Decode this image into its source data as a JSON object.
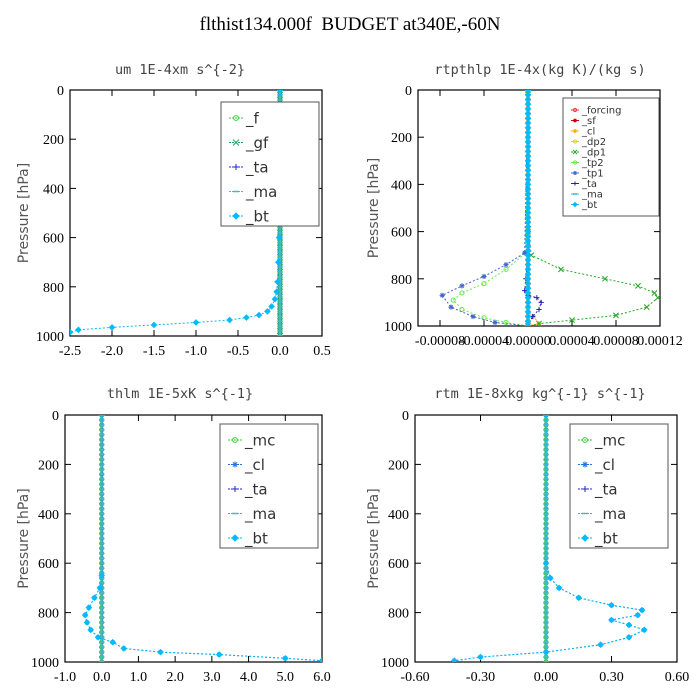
{
  "page": {
    "title": "flthist134.000f  BUDGET at340E,-60N"
  },
  "chart_data": [
    {
      "type": "line",
      "title": "um  1E-4xm s^{-2}",
      "ylabel": "Pressure [hPa]",
      "xlim": [
        -2.5,
        0.5
      ],
      "ylim": [
        1000,
        0
      ],
      "xticks": [
        "-2.5",
        "-2.0",
        "-1.5",
        "-1.0",
        "-0.5",
        "0.0",
        "0.5"
      ],
      "yticks": [
        "0",
        "200",
        "400",
        "600",
        "800",
        "1000"
      ],
      "legend": "top-right",
      "series": [
        {
          "name": "_f",
          "color": "#33cc33",
          "marker": "o",
          "x": [
            0,
            0
          ],
          "y": [
            0,
            1000
          ]
        },
        {
          "name": "_gf",
          "color": "#22aa66",
          "marker": "x",
          "x": [
            0,
            0
          ],
          "y": [
            0,
            1000
          ]
        },
        {
          "name": "_ta",
          "color": "#2222cc",
          "marker": "+",
          "x": [
            0,
            0
          ],
          "y": [
            0,
            1000
          ]
        },
        {
          "name": "_ma",
          "color": "#44bbbb",
          "marker": "-",
          "x": [
            0,
            0
          ],
          "y": [
            0,
            1000
          ]
        },
        {
          "name": "_bt",
          "color": "#00bbff",
          "marker": "d",
          "x": [
            0,
            0,
            -0.01,
            -0.02,
            -0.03,
            -0.04,
            -0.06,
            -0.1,
            -0.15,
            -0.25,
            -0.4,
            -0.6,
            -1.0,
            -1.5,
            -2.0,
            -2.4,
            -2.5
          ],
          "y": [
            0,
            500,
            600,
            700,
            780,
            820,
            850,
            880,
            900,
            915,
            925,
            935,
            945,
            955,
            965,
            975,
            985
          ]
        }
      ]
    },
    {
      "type": "line",
      "title": "rtpthlp  1E-4x(kg K)/(kg s)",
      "ylabel": "Pressure [hPa]",
      "xlim": [
        -0.0001,
        0.00012
      ],
      "ylim": [
        1000,
        0
      ],
      "xticks": [
        "-0.00008",
        "-0.00004",
        "0.00000",
        "0.00004",
        "0.00008",
        "0.00012"
      ],
      "yticks": [
        "0",
        "200",
        "400",
        "600",
        "800",
        "1000"
      ],
      "legend": "top-right",
      "series": [
        {
          "name": "_forcing",
          "color": "#ff3333",
          "marker": "o",
          "x": [
            0,
            0
          ],
          "y": [
            0,
            1000
          ]
        },
        {
          "name": "_sf",
          "color": "#cc0000",
          "marker": "*",
          "x": [
            0,
            0
          ],
          "y": [
            0,
            1000
          ]
        },
        {
          "name": "_cl",
          "color": "#ffaa00",
          "marker": "*",
          "x": [
            0,
            0,
            5e-06,
            1e-05,
            0
          ],
          "y": [
            0,
            940,
            960,
            990,
            1000
          ]
        },
        {
          "name": "_dp2",
          "color": "#dddd00",
          "marker": "o",
          "x": [
            0,
            0
          ],
          "y": [
            0,
            1000
          ]
        },
        {
          "name": "_dp1",
          "color": "#22aa22",
          "marker": "x",
          "x": [
            0,
            0,
            3e-06,
            3e-05,
            7e-05,
            0.0001,
            0.000115,
            0.000118,
            0.000108,
            8e-05,
            4e-05,
            1e-05,
            0
          ],
          "y": [
            0,
            600,
            700,
            760,
            800,
            830,
            860,
            880,
            920,
            955,
            975,
            990,
            1000
          ]
        },
        {
          "name": "_tp2",
          "color": "#66ee44",
          "marker": "o",
          "x": [
            0,
            -2e-06,
            -2e-05,
            -4e-05,
            -6e-05,
            -6.8e-05,
            -6e-05,
            -4e-05,
            -2e-05,
            0
          ],
          "y": [
            0,
            690,
            760,
            820,
            860,
            890,
            930,
            965,
            985,
            1000
          ]
        },
        {
          "name": "_tp1",
          "color": "#4466cc",
          "marker": "*",
          "x": [
            0,
            -3e-06,
            -2e-05,
            -4e-05,
            -6e-05,
            -7.8e-05,
            -7e-05,
            -5e-05,
            -3e-05,
            0
          ],
          "y": [
            0,
            690,
            740,
            790,
            830,
            870,
            920,
            960,
            985,
            1000
          ]
        },
        {
          "name": "_ta",
          "color": "#2222aa",
          "marker": "+",
          "x": [
            0,
            0,
            -2e-06,
            -3e-06,
            0,
            8e-06,
            1.2e-05,
            1e-05,
            4e-06,
            0
          ],
          "y": [
            0,
            700,
            800,
            850,
            870,
            880,
            900,
            930,
            960,
            1000
          ]
        },
        {
          "name": "_ma",
          "color": "#33bbbb",
          "marker": "-",
          "x": [
            0,
            0
          ],
          "y": [
            0,
            1000
          ]
        },
        {
          "name": "_bt",
          "color": "#00bbff",
          "marker": "d",
          "x": [
            0,
            0
          ],
          "y": [
            0,
            1000
          ]
        }
      ]
    },
    {
      "type": "line",
      "title": "thlm  1E-5xK s^{-1}",
      "ylabel": "Pressure [hPa]",
      "xlim": [
        -1.0,
        6.0
      ],
      "ylim": [
        1000,
        0
      ],
      "xticks": [
        "-1.0",
        "0.0",
        "1.0",
        "2.0",
        "3.0",
        "4.0",
        "5.0",
        "6.0"
      ],
      "yticks": [
        "0",
        "200",
        "400",
        "600",
        "800",
        "1000"
      ],
      "legend": "top-right",
      "series": [
        {
          "name": "_mc",
          "color": "#33cc33",
          "marker": "o",
          "x": [
            0,
            0
          ],
          "y": [
            0,
            1000
          ]
        },
        {
          "name": "_cl",
          "color": "#2277dd",
          "marker": "*",
          "x": [
            0,
            0,
            -0.05,
            -0.2,
            -0.35,
            -0.45,
            -0.4,
            -0.3,
            -0.1,
            0.3,
            0.6,
            1.6,
            3.2,
            5.0,
            6.0
          ],
          "y": [
            0,
            650,
            700,
            740,
            780,
            810,
            840,
            870,
            900,
            920,
            945,
            960,
            970,
            985,
            995
          ]
        },
        {
          "name": "_ta",
          "color": "#2222cc",
          "marker": "+",
          "x": [
            0,
            0
          ],
          "y": [
            0,
            1000
          ]
        },
        {
          "name": "_ma",
          "color": "#44bbbb",
          "marker": "-",
          "x": [
            0,
            0
          ],
          "y": [
            0,
            1000
          ]
        },
        {
          "name": "_bt",
          "color": "#00bbff",
          "marker": "d",
          "x": [
            0,
            0,
            -0.05,
            -0.2,
            -0.35,
            -0.45,
            -0.4,
            -0.3,
            -0.1,
            0.3,
            0.6,
            1.6,
            3.2,
            5.0,
            6.0
          ],
          "y": [
            0,
            650,
            700,
            740,
            780,
            810,
            840,
            870,
            900,
            920,
            945,
            960,
            970,
            985,
            995
          ]
        }
      ]
    },
    {
      "type": "line",
      "title": "rtm  1E-8xkg kg^{-1} s^{-1}",
      "ylabel": "Pressure [hPa]",
      "xlim": [
        -0.6,
        0.6
      ],
      "ylim": [
        1000,
        0
      ],
      "xticks": [
        "-0.60",
        "-0.30",
        "0.00",
        "0.30",
        "0.60"
      ],
      "yticks": [
        "0",
        "200",
        "400",
        "600",
        "800",
        "1000"
      ],
      "legend": "top-right",
      "series": [
        {
          "name": "_mc",
          "color": "#33cc33",
          "marker": "o",
          "x": [
            0,
            0
          ],
          "y": [
            0,
            1000
          ]
        },
        {
          "name": "_cl",
          "color": "#2277dd",
          "marker": "*",
          "x": [
            0,
            0,
            0.02,
            0.06,
            0.15,
            0.3,
            0.44,
            0.42,
            0.3,
            0.38,
            0.45,
            0.38,
            0.25,
            0.0,
            -0.3,
            -0.42
          ],
          "y": [
            0,
            600,
            660,
            700,
            740,
            770,
            790,
            810,
            830,
            850,
            870,
            900,
            930,
            960,
            980,
            995
          ]
        },
        {
          "name": "_ta",
          "color": "#2222cc",
          "marker": "+",
          "x": [
            0,
            0
          ],
          "y": [
            0,
            1000
          ]
        },
        {
          "name": "_ma",
          "color": "#44bbbb",
          "marker": "-",
          "x": [
            0,
            0
          ],
          "y": [
            0,
            1000
          ]
        },
        {
          "name": "_bt",
          "color": "#00bbff",
          "marker": "d",
          "x": [
            0,
            0,
            0.02,
            0.06,
            0.15,
            0.3,
            0.44,
            0.42,
            0.3,
            0.38,
            0.45,
            0.38,
            0.25,
            0.0,
            -0.3,
            -0.42
          ],
          "y": [
            0,
            600,
            660,
            700,
            740,
            770,
            790,
            810,
            830,
            850,
            870,
            900,
            930,
            960,
            980,
            995
          ]
        }
      ]
    }
  ]
}
